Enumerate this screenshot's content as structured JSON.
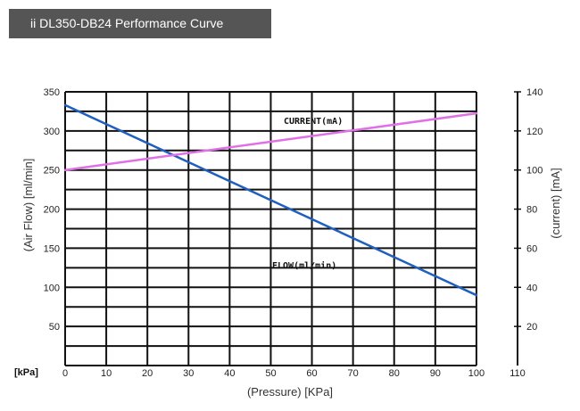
{
  "header": {
    "title": "ii DL350-DB24 Performance Curve"
  },
  "chart_data": {
    "type": "line",
    "xlabel": "(Pressure) [KPa]",
    "ylabel": "(Air Flow) [ml/min]",
    "y2label": "(current) [mA]",
    "x_unit_label": "[kPa]",
    "xlim": [
      0,
      110
    ],
    "ylim": [
      0,
      350
    ],
    "y2lim": [
      0,
      140
    ],
    "x_ticks": [
      "0",
      "10",
      "20",
      "30",
      "40",
      "50",
      "60",
      "70",
      "80",
      "90",
      "100",
      "110"
    ],
    "y_ticks": [
      "50",
      "100",
      "150",
      "200",
      "250",
      "300",
      "350"
    ],
    "y2_ticks": [
      "20",
      "40",
      "60",
      "80",
      "100",
      "120",
      "140"
    ],
    "grid": true,
    "series": [
      {
        "name": "FLOW(ml/min)",
        "axis": "left",
        "color": "#1f5fbf",
        "x": [
          0,
          100
        ],
        "y": [
          333,
          90
        ]
      },
      {
        "name": "CURRENT(mA)",
        "axis": "right",
        "color": "#e070e6",
        "x": [
          0,
          100
        ],
        "y": [
          100,
          129
        ]
      }
    ]
  }
}
